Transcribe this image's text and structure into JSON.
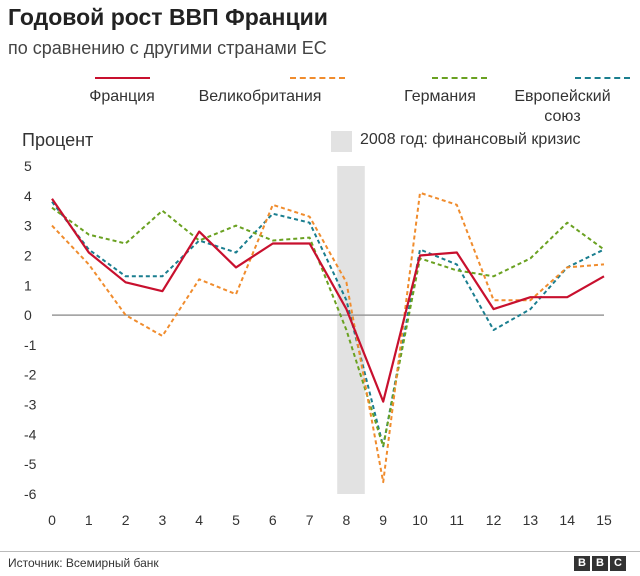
{
  "title": "Годовой рост ВВП Франции",
  "subtitle": "по сравнению с другими странами ЕС",
  "source": "Источник: Всемирный банк",
  "logo": [
    "B",
    "B",
    "C"
  ],
  "chart_data": {
    "type": "line",
    "ylabel": "Процент",
    "x": [
      0,
      1,
      2,
      3,
      4,
      5,
      6,
      7,
      8,
      9,
      10,
      11,
      12,
      13,
      14,
      15
    ],
    "xlim": [
      0,
      15
    ],
    "ylim": [
      -6,
      5
    ],
    "yticks": [
      5,
      4,
      3,
      2,
      1,
      0,
      -1,
      -2,
      -3,
      -4,
      -5,
      -6
    ],
    "shaded_region": {
      "x_from": 7.75,
      "x_to": 8.5,
      "label": "2008 год: финансовый кризис",
      "color": "#e2e2e2"
    },
    "legend_position": "top",
    "series": [
      {
        "name": "Франция",
        "color": "#c8102e",
        "dashed": false,
        "values": [
          3.9,
          2.1,
          1.1,
          0.8,
          2.8,
          1.6,
          2.4,
          2.4,
          0.2,
          -2.9,
          2.0,
          2.1,
          0.2,
          0.6,
          0.6,
          1.3
        ]
      },
      {
        "name": "Великобритания",
        "color": "#f08c2d",
        "dashed": true,
        "values": [
          3.0,
          1.7,
          0.0,
          -0.7,
          1.2,
          0.7,
          3.7,
          3.3,
          1.1,
          -5.6,
          4.1,
          3.7,
          0.5,
          0.5,
          1.6,
          1.7
        ]
      },
      {
        "name": "Германия",
        "color": "#6aa121",
        "dashed": true,
        "values": [
          3.6,
          2.7,
          2.4,
          3.5,
          2.5,
          3.0,
          2.5,
          2.6,
          -0.5,
          -4.4,
          1.9,
          1.5,
          1.3,
          1.9,
          3.1,
          2.2
        ]
      },
      {
        "name": "Европейский союз",
        "color": "#1a7e8f",
        "dashed": true,
        "values": [
          3.8,
          2.2,
          1.3,
          1.3,
          2.5,
          2.1,
          3.4,
          3.1,
          0.5,
          -4.4,
          2.2,
          1.7,
          -0.5,
          0.2,
          1.6,
          2.2
        ]
      }
    ]
  }
}
